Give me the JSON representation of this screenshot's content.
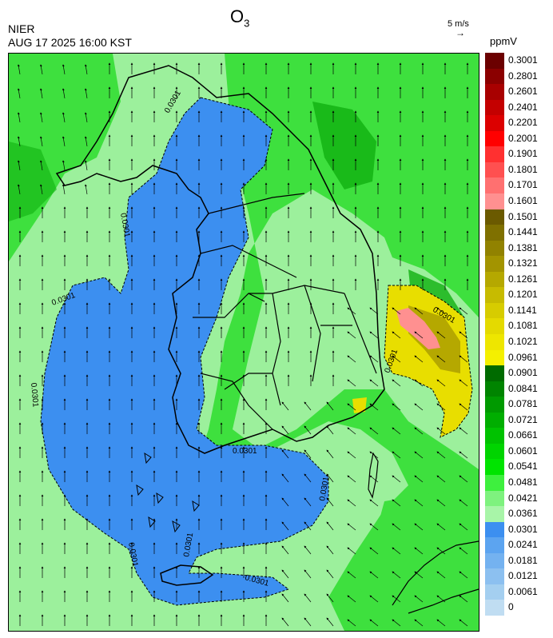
{
  "header": {
    "title_main": "O",
    "title_sub": "3",
    "agency": "NIER",
    "datetime": "AUG 17 2025 16:00 KST",
    "wind_reference": "5 m/s",
    "unit": "ppmV"
  },
  "legend": {
    "labels": [
      "0.3001",
      "0.2801",
      "0.2601",
      "0.2401",
      "0.2201",
      "0.2001",
      "0.1901",
      "0.1801",
      "0.1701",
      "0.1601",
      "0.1501",
      "0.1441",
      "0.1381",
      "0.1321",
      "0.1261",
      "0.1201",
      "0.1141",
      "0.1081",
      "0.1021",
      "0.0961",
      "0.0901",
      "0.0841",
      "0.0781",
      "0.0721",
      "0.0661",
      "0.0601",
      "0.0541",
      "0.0481",
      "0.0421",
      "0.0361",
      "0.0301",
      "0.0241",
      "0.0181",
      "0.0121",
      "0.0061",
      "0"
    ],
    "colors": [
      "#6b0000",
      "#8b0000",
      "#a80000",
      "#c40000",
      "#dc0000",
      "#ff0000",
      "#ff3030",
      "#ff5050",
      "#ff7070",
      "#ff9090",
      "#6b5a00",
      "#7f7000",
      "#918200",
      "#a39400",
      "#b5a800",
      "#c7bb00",
      "#d7cc00",
      "#e4da00",
      "#eee600",
      "#f5f000",
      "#006b00",
      "#008400",
      "#009a00",
      "#00ae00",
      "#00c200",
      "#00d400",
      "#00e400",
      "#3ef03e",
      "#7ef27e",
      "#a8f5a8",
      "#3c8ff0",
      "#5ca4f0",
      "#74b2f0",
      "#8cc0f0",
      "#a4cff0",
      "#c0ddf2"
    ]
  },
  "map": {
    "contour_label": "0.0301",
    "colors": {
      "background": "#9cf09c",
      "mid_green": "#3ee03e",
      "dark_green": "#10b010",
      "low_blue": "#3c8ff0",
      "yellow": "#e8de00",
      "olive": "#b5a800",
      "pink": "#ff9090"
    }
  }
}
